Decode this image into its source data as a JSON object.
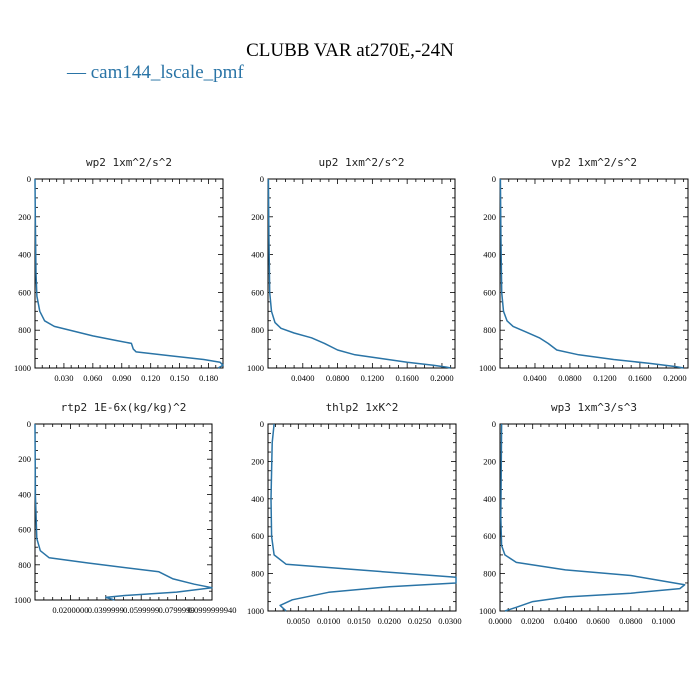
{
  "figure": {
    "title": "CLUBB VAR at270E,-24N",
    "legend": [
      {
        "label": "— cam144_lscale_pmf",
        "color": "#2a74a6"
      }
    ]
  },
  "chart_data": [
    {
      "type": "line",
      "title": "wp2  1xm^2/s^2",
      "xlim": [
        0,
        0.195
      ],
      "ylim": [
        1000,
        0
      ],
      "x_ticks": [
        0.03,
        0.06,
        0.09,
        0.12,
        0.15,
        0.18
      ],
      "x_tick_labels": [
        "0.030",
        "0.060",
        "0.090",
        "0.120",
        "0.150",
        "0.180"
      ],
      "y_ticks": [
        0,
        200,
        400,
        600,
        800,
        1000
      ],
      "y_tick_labels": [
        "0",
        "200",
        "400",
        "600",
        "800",
        "1000"
      ],
      "series": [
        {
          "name": "cam144_lscale_pmf",
          "color": "#2a74a6",
          "x": [
            0,
            0.0003,
            0.001,
            0.002,
            0.005,
            0.01,
            0.02,
            0.04,
            0.06,
            0.085,
            0.1,
            0.102,
            0.105,
            0.14,
            0.175,
            0.192,
            0.195,
            0.19
          ],
          "y": [
            0,
            200,
            500,
            620,
            700,
            750,
            780,
            805,
            830,
            855,
            870,
            900,
            915,
            935,
            955,
            970,
            985,
            1000
          ]
        }
      ]
    },
    {
      "type": "line",
      "title": "up2  1xm^2/s^2",
      "xlim": [
        0,
        0.215
      ],
      "ylim": [
        1000,
        0
      ],
      "x_ticks": [
        0.04,
        0.08,
        0.12,
        0.16,
        0.2
      ],
      "x_tick_labels": [
        "0.0400",
        "0.0800",
        "0.1200",
        "0.1600",
        "0.2000"
      ],
      "y_ticks": [
        0,
        200,
        400,
        600,
        800,
        1000
      ],
      "y_tick_labels": [
        "0",
        "200",
        "400",
        "600",
        "800",
        "1000"
      ],
      "series": [
        {
          "name": "cam144_lscale_pmf",
          "color": "#2a74a6",
          "x": [
            0.0005,
            0.001,
            0.002,
            0.004,
            0.008,
            0.015,
            0.03,
            0.05,
            0.065,
            0.08,
            0.1,
            0.13,
            0.16,
            0.19,
            0.205,
            0.21
          ],
          "y": [
            0,
            300,
            600,
            700,
            760,
            790,
            815,
            840,
            870,
            905,
            930,
            950,
            970,
            985,
            995,
            1000
          ]
        }
      ]
    },
    {
      "type": "line",
      "title": "vp2  1xm^2/s^2",
      "xlim": [
        0,
        0.215
      ],
      "ylim": [
        1000,
        0
      ],
      "x_ticks": [
        0.04,
        0.08,
        0.12,
        0.16,
        0.2
      ],
      "x_tick_labels": [
        "0.0400",
        "0.0800",
        "0.1200",
        "0.1600",
        "0.2000"
      ],
      "y_ticks": [
        0,
        200,
        400,
        600,
        800,
        1000
      ],
      "y_tick_labels": [
        "0",
        "200",
        "400",
        "600",
        "800",
        "1000"
      ],
      "series": [
        {
          "name": "cam144_lscale_pmf",
          "color": "#2a74a6",
          "x": [
            0.0005,
            0.001,
            0.002,
            0.004,
            0.008,
            0.015,
            0.03,
            0.045,
            0.055,
            0.065,
            0.09,
            0.13,
            0.17,
            0.2,
            0.21
          ],
          "y": [
            0,
            300,
            600,
            700,
            750,
            780,
            810,
            840,
            870,
            905,
            930,
            955,
            975,
            992,
            1000
          ]
        }
      ]
    },
    {
      "type": "line",
      "title": "rtp2  1E-6x(kg/kg)^2",
      "xlim": [
        0,
        0.1
      ],
      "ylim": [
        1000,
        0
      ],
      "x_ticks": [
        0.02,
        0.04,
        0.06,
        0.08,
        0.1
      ],
      "x_tick_labels": [
        "0.0200000",
        "0.0399999",
        "0.0599999",
        "0.0799999",
        "0.0999999940"
      ],
      "y_ticks": [
        0,
        200,
        400,
        600,
        800,
        1000
      ],
      "y_tick_labels": [
        "0",
        "200",
        "400",
        "600",
        "800",
        "1000"
      ],
      "series": [
        {
          "name": "cam144_lscale_pmf",
          "color": "#2a74a6",
          "x": [
            0,
            0.0002,
            0.001,
            0.003,
            0.008,
            0.03,
            0.07,
            0.078,
            0.09,
            0.1,
            0.08,
            0.05,
            0.04,
            0.045
          ],
          "y": [
            0,
            400,
            650,
            720,
            760,
            790,
            840,
            880,
            910,
            930,
            955,
            975,
            985,
            1000
          ]
        }
      ]
    },
    {
      "type": "line",
      "title": "thlp2  1xK^2",
      "xlim": [
        0,
        0.031
      ],
      "ylim": [
        1000,
        0
      ],
      "x_ticks": [
        0.005,
        0.01,
        0.015,
        0.02,
        0.025,
        0.03
      ],
      "x_tick_labels": [
        "0.0050",
        "0.0100",
        "0.0150",
        "0.0200",
        "0.0250",
        "0.0300"
      ],
      "y_ticks": [
        0,
        200,
        400,
        600,
        800,
        1000
      ],
      "y_tick_labels": [
        "0",
        "200",
        "400",
        "600",
        "800",
        "1000"
      ],
      "series": [
        {
          "name": "cam144_lscale_pmf",
          "color": "#2a74a6",
          "x": [
            0.001,
            0.0007,
            0.0005,
            0.0006,
            0.001,
            0.003,
            0.015,
            0.031,
            0.031,
            0.02,
            0.01,
            0.004,
            0.002,
            0.003
          ],
          "y": [
            0,
            100,
            400,
            600,
            700,
            750,
            780,
            820,
            850,
            870,
            900,
            940,
            970,
            1000
          ]
        }
      ]
    },
    {
      "type": "line",
      "title": "wp3  1xm^3/s^3",
      "xlim": [
        0,
        0.115
      ],
      "ylim": [
        1000,
        0
      ],
      "x_ticks": [
        0,
        0.02,
        0.04,
        0.06,
        0.08,
        0.1
      ],
      "x_tick_labels": [
        "0.0000",
        "0.0200",
        "0.0400",
        "0.0600",
        "0.0800",
        "0.1000"
      ],
      "y_ticks": [
        0,
        200,
        400,
        600,
        800,
        1000
      ],
      "y_tick_labels": [
        "0",
        "200",
        "400",
        "600",
        "800",
        "1000"
      ],
      "series": [
        {
          "name": "cam144_lscale_pmf",
          "color": "#2a74a6",
          "x": [
            0.001,
            0.0008,
            0.0005,
            0.001,
            0.003,
            0.01,
            0.04,
            0.08,
            0.1,
            0.113,
            0.11,
            0.08,
            0.04,
            0.02,
            0.01,
            0.003
          ],
          "y": [
            0,
            200,
            500,
            650,
            700,
            740,
            780,
            810,
            840,
            860,
            880,
            905,
            925,
            950,
            980,
            1000
          ]
        }
      ]
    }
  ]
}
